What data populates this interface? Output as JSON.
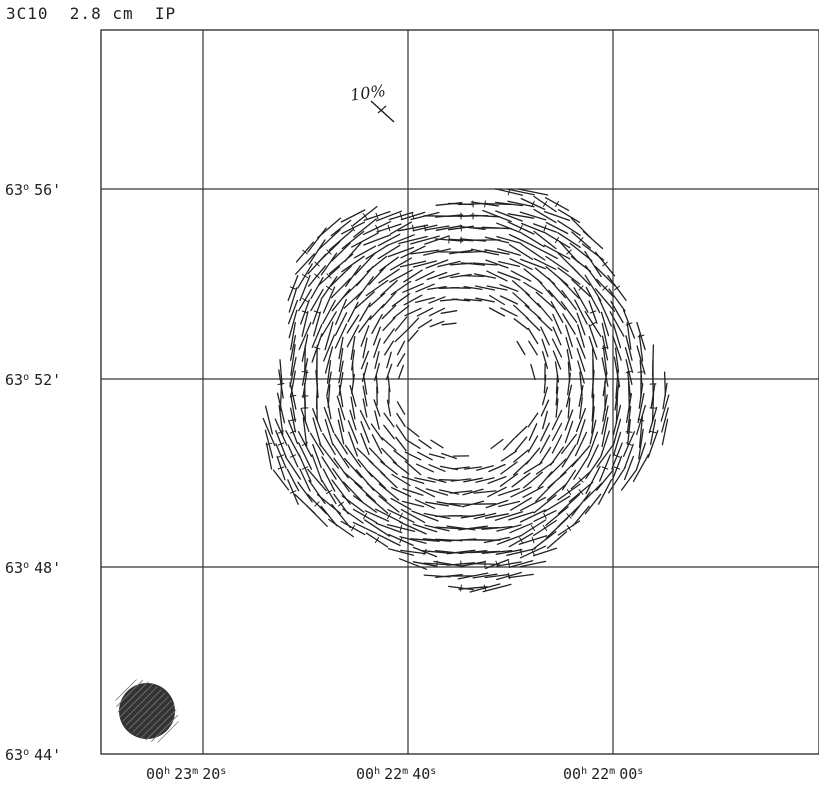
{
  "figure": {
    "title": "3C10  2.8 cm  IP",
    "scale_label": "10%",
    "scale_fraction": 0.1
  },
  "dec_labels": [
    {
      "deg": "63",
      "unit": "o",
      "min": "56'"
    },
    {
      "deg": "63",
      "unit": "o",
      "min": "52'"
    },
    {
      "deg": "63",
      "unit": "o",
      "min": "48'"
    },
    {
      "deg": "63",
      "unit": "o",
      "min": "44'"
    }
  ],
  "ra_labels": [
    {
      "h": "00",
      "m": "23",
      "s": "20"
    },
    {
      "h": "00",
      "m": "22",
      "s": "40"
    },
    {
      "h": "00",
      "m": "22",
      "s": "00"
    }
  ],
  "beam": {
    "fill": "#333333"
  },
  "colors": {
    "ink": "#222222",
    "frame": "#333333",
    "paper": "#ffffff"
  }
}
